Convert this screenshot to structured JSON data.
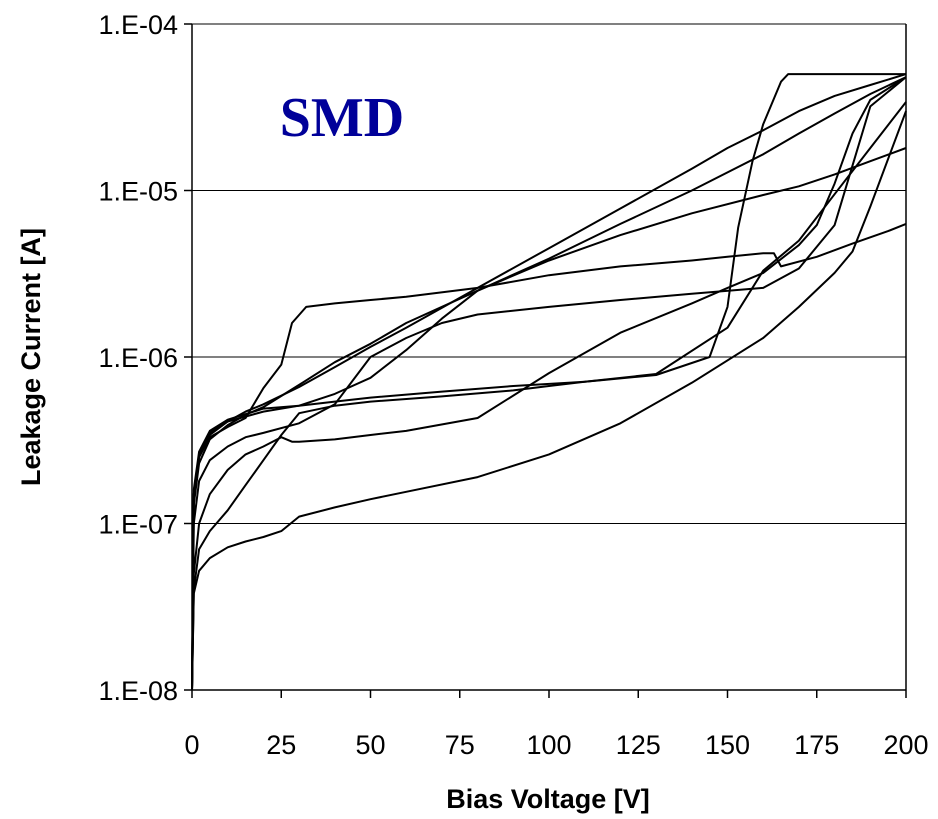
{
  "chart_data": {
    "type": "line",
    "title": "",
    "xlabel": "Bias Voltage [V]",
    "ylabel": "Leakage Current [A]",
    "annotation": "SMD",
    "annotation_color": "#000099",
    "line_color": "#000000",
    "scale_y": "log",
    "grid_y": true,
    "grid_x": false,
    "legend": "none",
    "xlim": [
      0,
      200
    ],
    "ylim": [
      1e-08,
      0.0001
    ],
    "xticks": [
      0,
      25,
      50,
      75,
      100,
      125,
      150,
      175,
      200
    ],
    "xtick_labels": [
      "0",
      "25",
      "50",
      "75",
      "100",
      "125",
      "150",
      "175",
      "200"
    ],
    "yticks": [
      1e-08,
      1e-07,
      1e-06,
      1e-05,
      0.0001
    ],
    "ytick_labels": [
      "1.E-08",
      "1.E-07",
      "1.E-06",
      "1.E-05",
      "1.E-04"
    ],
    "series": [
      {
        "x": [
          0,
          0.5,
          2,
          5,
          10,
          15,
          20,
          25,
          28,
          32,
          40,
          50,
          60,
          80,
          100,
          120,
          140,
          150,
          155,
          160,
          163,
          165,
          175,
          185,
          195,
          200
        ],
        "y": [
          1e-08,
          1.5e-07,
          2.5e-07,
          3.3e-07,
          3.8e-07,
          4.3e-07,
          6.5e-07,
          9e-07,
          1.6e-06,
          2e-06,
          2.1e-06,
          2.2e-06,
          2.3e-06,
          2.6e-06,
          3.1e-06,
          3.5e-06,
          3.8e-06,
          4e-06,
          4.1e-06,
          4.2e-06,
          4.2e-06,
          3.5e-06,
          4e-06,
          4.8e-06,
          5.7e-06,
          6.3e-06
        ]
      },
      {
        "x": [
          0,
          0.5,
          2,
          5,
          10,
          20,
          30,
          40,
          50,
          70,
          90,
          110,
          130,
          145,
          150,
          153,
          157,
          160,
          165,
          167,
          175,
          180,
          190,
          200
        ],
        "y": [
          1e-08,
          1.6e-07,
          2.7e-07,
          3.6e-07,
          4.2e-07,
          4.9e-07,
          5.1e-07,
          5.4e-07,
          5.7e-07,
          6.2e-07,
          6.7e-07,
          7.1e-07,
          7.8e-07,
          1e-06,
          2e-06,
          6e-06,
          1.5e-05,
          2.5e-05,
          4.5e-05,
          5e-05,
          5e-05,
          5e-05,
          5e-05,
          5e-05
        ]
      },
      {
        "x": [
          0,
          0.5,
          2,
          5,
          10,
          15,
          20,
          30,
          40,
          50,
          60,
          80,
          100,
          120,
          140,
          150,
          160,
          170,
          180,
          190,
          200
        ],
        "y": [
          1e-08,
          1.4e-07,
          2.5e-07,
          3.4e-07,
          4.1e-07,
          4.7e-07,
          5.2e-07,
          6.6e-07,
          8.7e-07,
          1.15e-06,
          1.5e-06,
          2.6e-06,
          4.5e-06,
          7.8e-06,
          1.35e-05,
          1.8e-05,
          2.3e-05,
          3e-05,
          3.7e-05,
          4.3e-05,
          5e-05
        ]
      },
      {
        "x": [
          0,
          0.5,
          2,
          5,
          10,
          15,
          20,
          30,
          40,
          50,
          60,
          80,
          100,
          120,
          140,
          160,
          170,
          180,
          190,
          200
        ],
        "y": [
          1e-08,
          1.3e-07,
          2.3e-07,
          3.2e-07,
          3.9e-07,
          4.5e-07,
          5e-07,
          6.8e-07,
          9.3e-07,
          1.2e-06,
          1.6e-06,
          2.5e-06,
          3.9e-06,
          6.3e-06,
          1e-05,
          1.65e-05,
          2.2e-05,
          2.9e-05,
          3.8e-05,
          4.8e-05
        ]
      },
      {
        "x": [
          0,
          0.5,
          2,
          5,
          10,
          20,
          30,
          40,
          50,
          60,
          70,
          80,
          100,
          120,
          140,
          160,
          170,
          180,
          190,
          200
        ],
        "y": [
          1e-08,
          1.5e-07,
          2.6e-07,
          3.5e-07,
          4.1e-07,
          4.7e-07,
          5.1e-07,
          6e-07,
          7.5e-07,
          1.1e-06,
          1.7e-06,
          2.5e-06,
          3.8e-06,
          5.4e-06,
          7.3e-06,
          9.4e-06,
          1.06e-05,
          1.25e-05,
          1.5e-05,
          1.8e-05
        ]
      },
      {
        "x": [
          0,
          0.5,
          2,
          5,
          10,
          15,
          20,
          30,
          40,
          50,
          60,
          70,
          80,
          100,
          120,
          140,
          160,
          170,
          180,
          190,
          200
        ],
        "y": [
          1e-08,
          1e-07,
          1.8e-07,
          2.4e-07,
          2.9e-07,
          3.3e-07,
          3.5e-07,
          4e-07,
          5.2e-07,
          1e-06,
          1.3e-06,
          1.6e-06,
          1.8e-06,
          2e-06,
          2.2e-06,
          2.4e-06,
          2.6e-06,
          3.4e-06,
          6.2e-06,
          3.2e-05,
          4.8e-05
        ]
      },
      {
        "x": [
          0,
          0.5,
          2,
          5,
          10,
          15,
          20,
          25,
          28,
          30,
          40,
          50,
          60,
          80,
          100,
          120,
          140,
          150,
          160,
          170,
          175,
          180,
          185,
          190,
          200
        ],
        "y": [
          1e-08,
          5e-08,
          1e-07,
          1.5e-07,
          2.1e-07,
          2.6e-07,
          2.9e-07,
          3.3e-07,
          3.1e-07,
          3.1e-07,
          3.2e-07,
          3.4e-07,
          3.6e-07,
          4.3e-07,
          8e-07,
          1.4e-06,
          2.1e-06,
          2.6e-06,
          3.2e-06,
          4.7e-06,
          6.2e-06,
          1.1e-05,
          2.2e-05,
          3.5e-05,
          4.8e-05
        ]
      },
      {
        "x": [
          0,
          0.5,
          2,
          5,
          10,
          15,
          20,
          25,
          30,
          40,
          50,
          70,
          90,
          100,
          110,
          130,
          150,
          160,
          170,
          180,
          190,
          200
        ],
        "y": [
          1e-08,
          4e-08,
          7e-08,
          9e-08,
          1.2e-07,
          1.7e-07,
          2.4e-07,
          3.4e-07,
          4.6e-07,
          5.1e-07,
          5.4e-07,
          5.8e-07,
          6.3e-07,
          6.7e-07,
          7.1e-07,
          7.9e-07,
          1.5e-06,
          3.3e-06,
          5e-06,
          9.5e-06,
          1.8e-05,
          3.4e-05
        ]
      },
      {
        "x": [
          0,
          0.5,
          2,
          5,
          10,
          15,
          20,
          25,
          30,
          40,
          50,
          60,
          80,
          100,
          120,
          140,
          160,
          170,
          180,
          185,
          190,
          200
        ],
        "y": [
          1e-08,
          3.8e-08,
          5.2e-08,
          6.2e-08,
          7.2e-08,
          7.8e-08,
          8.3e-08,
          9e-08,
          1.1e-07,
          1.25e-07,
          1.4e-07,
          1.55e-07,
          1.9e-07,
          2.6e-07,
          4e-07,
          7e-07,
          1.3e-06,
          2e-06,
          3.2e-06,
          4.3e-06,
          8e-06,
          3e-05
        ]
      }
    ]
  }
}
